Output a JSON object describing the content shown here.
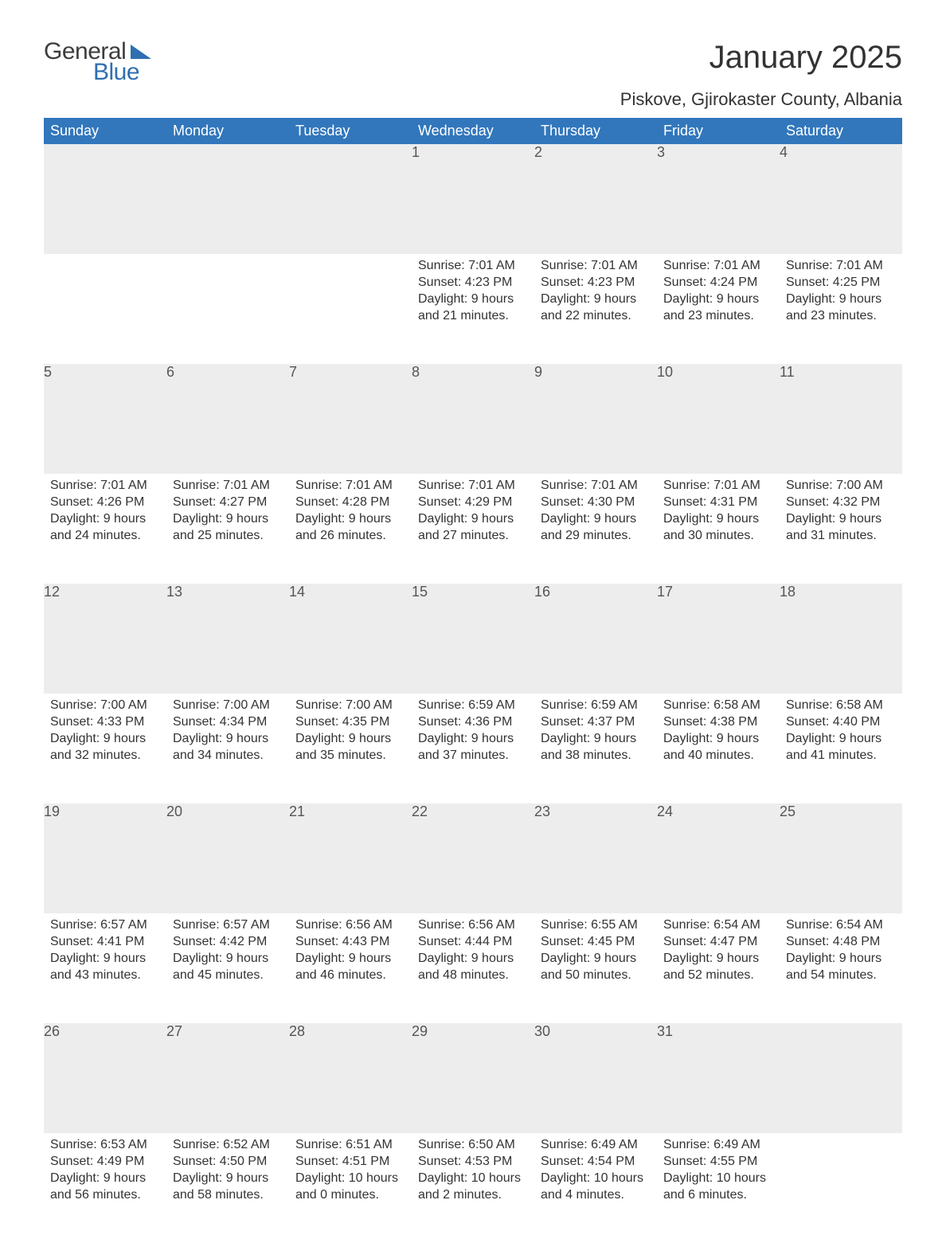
{
  "brand": {
    "general": "General",
    "blue": "Blue"
  },
  "title": "January 2025",
  "location": "Piskove, Gjirokaster County, Albania",
  "colors": {
    "header_bg": "#3277bc",
    "header_text": "#ffffff",
    "daynum_bg": "#ededed",
    "row_border": "#3277bc",
    "body_text": "#333333",
    "logo_blue": "#2f6fb0"
  },
  "weekdays": [
    "Sunday",
    "Monday",
    "Tuesday",
    "Wednesday",
    "Thursday",
    "Friday",
    "Saturday"
  ],
  "weeks": [
    [
      null,
      null,
      null,
      {
        "n": "1",
        "sunrise": "7:01 AM",
        "sunset": "4:23 PM",
        "dl1": "Daylight: 9 hours",
        "dl2": "and 21 minutes."
      },
      {
        "n": "2",
        "sunrise": "7:01 AM",
        "sunset": "4:23 PM",
        "dl1": "Daylight: 9 hours",
        "dl2": "and 22 minutes."
      },
      {
        "n": "3",
        "sunrise": "7:01 AM",
        "sunset": "4:24 PM",
        "dl1": "Daylight: 9 hours",
        "dl2": "and 23 minutes."
      },
      {
        "n": "4",
        "sunrise": "7:01 AM",
        "sunset": "4:25 PM",
        "dl1": "Daylight: 9 hours",
        "dl2": "and 23 minutes."
      }
    ],
    [
      {
        "n": "5",
        "sunrise": "7:01 AM",
        "sunset": "4:26 PM",
        "dl1": "Daylight: 9 hours",
        "dl2": "and 24 minutes."
      },
      {
        "n": "6",
        "sunrise": "7:01 AM",
        "sunset": "4:27 PM",
        "dl1": "Daylight: 9 hours",
        "dl2": "and 25 minutes."
      },
      {
        "n": "7",
        "sunrise": "7:01 AM",
        "sunset": "4:28 PM",
        "dl1": "Daylight: 9 hours",
        "dl2": "and 26 minutes."
      },
      {
        "n": "8",
        "sunrise": "7:01 AM",
        "sunset": "4:29 PM",
        "dl1": "Daylight: 9 hours",
        "dl2": "and 27 minutes."
      },
      {
        "n": "9",
        "sunrise": "7:01 AM",
        "sunset": "4:30 PM",
        "dl1": "Daylight: 9 hours",
        "dl2": "and 29 minutes."
      },
      {
        "n": "10",
        "sunrise": "7:01 AM",
        "sunset": "4:31 PM",
        "dl1": "Daylight: 9 hours",
        "dl2": "and 30 minutes."
      },
      {
        "n": "11",
        "sunrise": "7:00 AM",
        "sunset": "4:32 PM",
        "dl1": "Daylight: 9 hours",
        "dl2": "and 31 minutes."
      }
    ],
    [
      {
        "n": "12",
        "sunrise": "7:00 AM",
        "sunset": "4:33 PM",
        "dl1": "Daylight: 9 hours",
        "dl2": "and 32 minutes."
      },
      {
        "n": "13",
        "sunrise": "7:00 AM",
        "sunset": "4:34 PM",
        "dl1": "Daylight: 9 hours",
        "dl2": "and 34 minutes."
      },
      {
        "n": "14",
        "sunrise": "7:00 AM",
        "sunset": "4:35 PM",
        "dl1": "Daylight: 9 hours",
        "dl2": "and 35 minutes."
      },
      {
        "n": "15",
        "sunrise": "6:59 AM",
        "sunset": "4:36 PM",
        "dl1": "Daylight: 9 hours",
        "dl2": "and 37 minutes."
      },
      {
        "n": "16",
        "sunrise": "6:59 AM",
        "sunset": "4:37 PM",
        "dl1": "Daylight: 9 hours",
        "dl2": "and 38 minutes."
      },
      {
        "n": "17",
        "sunrise": "6:58 AM",
        "sunset": "4:38 PM",
        "dl1": "Daylight: 9 hours",
        "dl2": "and 40 minutes."
      },
      {
        "n": "18",
        "sunrise": "6:58 AM",
        "sunset": "4:40 PM",
        "dl1": "Daylight: 9 hours",
        "dl2": "and 41 minutes."
      }
    ],
    [
      {
        "n": "19",
        "sunrise": "6:57 AM",
        "sunset": "4:41 PM",
        "dl1": "Daylight: 9 hours",
        "dl2": "and 43 minutes."
      },
      {
        "n": "20",
        "sunrise": "6:57 AM",
        "sunset": "4:42 PM",
        "dl1": "Daylight: 9 hours",
        "dl2": "and 45 minutes."
      },
      {
        "n": "21",
        "sunrise": "6:56 AM",
        "sunset": "4:43 PM",
        "dl1": "Daylight: 9 hours",
        "dl2": "and 46 minutes."
      },
      {
        "n": "22",
        "sunrise": "6:56 AM",
        "sunset": "4:44 PM",
        "dl1": "Daylight: 9 hours",
        "dl2": "and 48 minutes."
      },
      {
        "n": "23",
        "sunrise": "6:55 AM",
        "sunset": "4:45 PM",
        "dl1": "Daylight: 9 hours",
        "dl2": "and 50 minutes."
      },
      {
        "n": "24",
        "sunrise": "6:54 AM",
        "sunset": "4:47 PM",
        "dl1": "Daylight: 9 hours",
        "dl2": "and 52 minutes."
      },
      {
        "n": "25",
        "sunrise": "6:54 AM",
        "sunset": "4:48 PM",
        "dl1": "Daylight: 9 hours",
        "dl2": "and 54 minutes."
      }
    ],
    [
      {
        "n": "26",
        "sunrise": "6:53 AM",
        "sunset": "4:49 PM",
        "dl1": "Daylight: 9 hours",
        "dl2": "and 56 minutes."
      },
      {
        "n": "27",
        "sunrise": "6:52 AM",
        "sunset": "4:50 PM",
        "dl1": "Daylight: 9 hours",
        "dl2": "and 58 minutes."
      },
      {
        "n": "28",
        "sunrise": "6:51 AM",
        "sunset": "4:51 PM",
        "dl1": "Daylight: 10 hours",
        "dl2": "and 0 minutes."
      },
      {
        "n": "29",
        "sunrise": "6:50 AM",
        "sunset": "4:53 PM",
        "dl1": "Daylight: 10 hours",
        "dl2": "and 2 minutes."
      },
      {
        "n": "30",
        "sunrise": "6:49 AM",
        "sunset": "4:54 PM",
        "dl1": "Daylight: 10 hours",
        "dl2": "and 4 minutes."
      },
      {
        "n": "31",
        "sunrise": "6:49 AM",
        "sunset": "4:55 PM",
        "dl1": "Daylight: 10 hours",
        "dl2": "and 6 minutes."
      },
      null
    ]
  ],
  "labels": {
    "sunrise": "Sunrise: ",
    "sunset": "Sunset: "
  }
}
